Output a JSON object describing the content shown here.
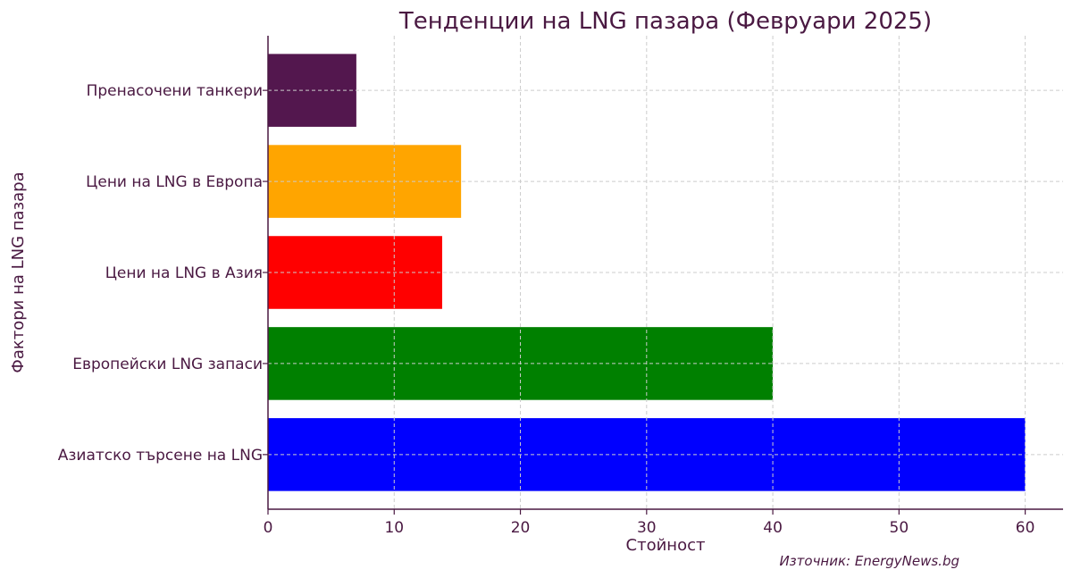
{
  "chart_data": {
    "type": "bar",
    "orientation": "horizontal",
    "title": "Тенденции на LNG пазара (Февруари 2025)",
    "xlabel": "Стойност",
    "ylabel": "Фактори на LNG пазара",
    "xlim": [
      0,
      63
    ],
    "xticks": [
      0,
      10,
      20,
      30,
      40,
      50,
      60
    ],
    "categories": [
      "Азиатско търсене на LNG",
      "Европейски LNG запаси",
      "Цени на LNG в Азия",
      "Цени на LNG в Европа",
      "Пренасочени танкери"
    ],
    "values": [
      60,
      40,
      13.8,
      15.3,
      7
    ],
    "colors": [
      "#0000ff",
      "#008000",
      "#ff0000",
      "#ffa500",
      "#53174e"
    ],
    "grid": true,
    "legend": "none"
  },
  "source_note": "Източник: EnergyNews.bg"
}
